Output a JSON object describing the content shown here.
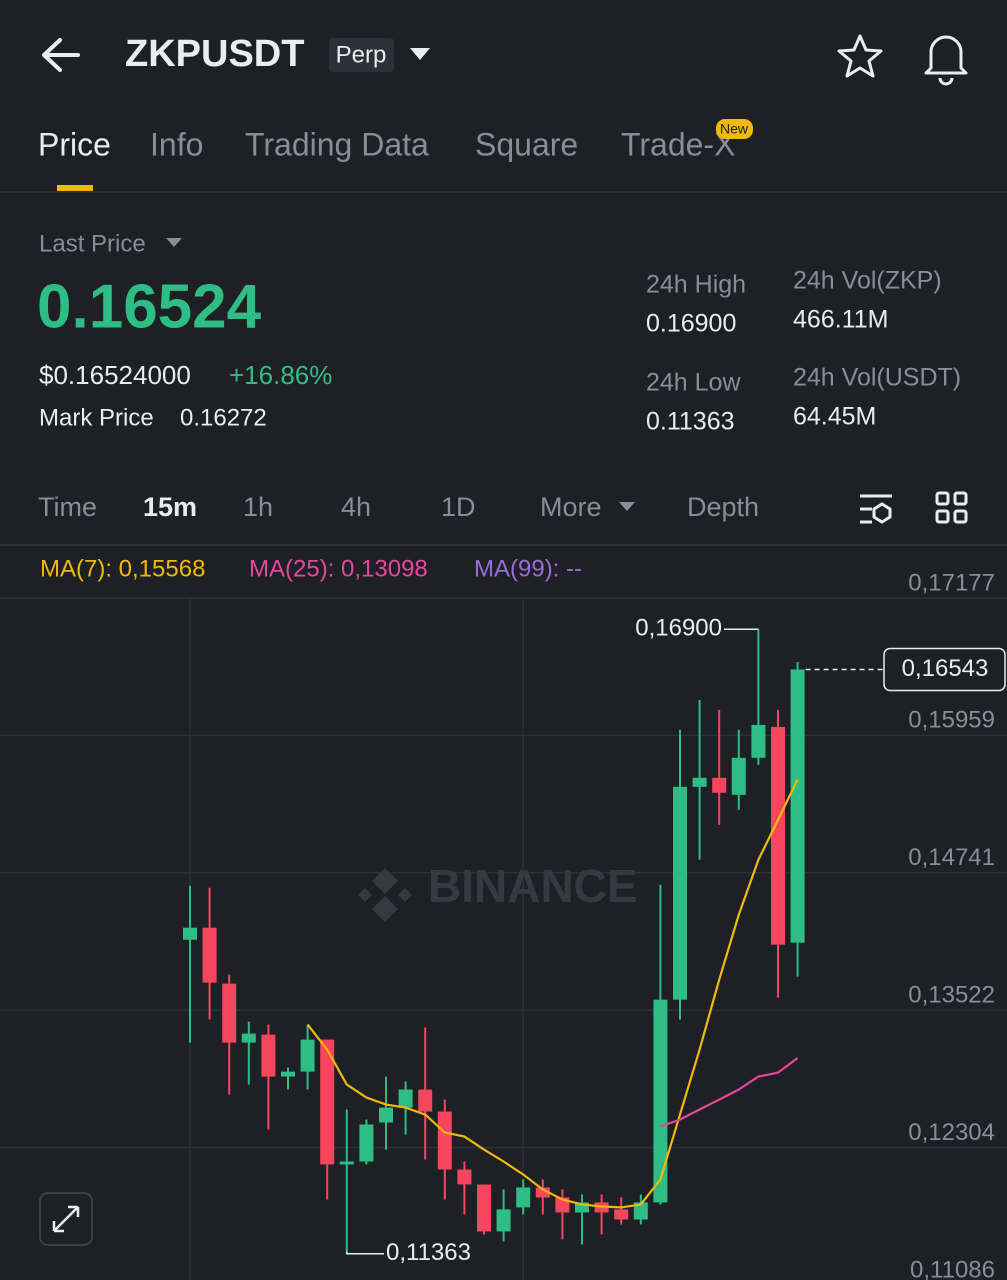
{
  "header": {
    "title": "ZKPUSDT",
    "badge": "Perp"
  },
  "tabs": {
    "items": [
      "Price",
      "Info",
      "Trading Data",
      "Square",
      "Trade-X"
    ],
    "new_badge": "New"
  },
  "ticker": {
    "last_price_label": "Last Price",
    "last_price": "0.16524",
    "usd_price": "$0.16524000",
    "change": "+16.86%",
    "mark_price_label": "Mark Price",
    "mark_price": "0.16272",
    "stats": [
      {
        "label": "24h High",
        "value": "0.16900"
      },
      {
        "label": "24h Vol(ZKP)",
        "value": "466.11M"
      },
      {
        "label": "24h Low",
        "value": "0.11363"
      },
      {
        "label": "24h Vol(USDT)",
        "value": "64.45M"
      }
    ]
  },
  "intervals": {
    "items": [
      "Time",
      "15m",
      "1h",
      "4h",
      "1D",
      "More",
      "Depth"
    ]
  },
  "chart_data": {
    "type": "candlestick",
    "watermark": "BINANCE",
    "up_color": "#2ebd85",
    "down_color": "#f6465d",
    "open": [
      0.14147,
      0.14254,
      0.13758,
      0.13235,
      0.13306,
      0.12934,
      0.12978,
      0.13262,
      0.12155,
      0.12181,
      0.12527,
      0.12659,
      0.12819,
      0.12624,
      0.1211,
      0.11977,
      0.11561,
      0.11774,
      0.11951,
      0.11862,
      0.11729,
      0.11818,
      0.11756,
      0.11667,
      0.11818,
      0.13616,
      0.15503,
      0.15583,
      0.15432,
      0.1576,
      0.16034,
      0.14121
    ],
    "high": [
      0.14626,
      0.14608,
      0.13838,
      0.13421,
      0.13395,
      0.13014,
      0.13395,
      0.13262,
      0.12642,
      0.12553,
      0.12934,
      0.1289,
      0.13368,
      0.1273,
      0.12181,
      0.11977,
      0.11933,
      0.12022,
      0.12022,
      0.11933,
      0.11889,
      0.11889,
      0.11862,
      0.11889,
      0.14635,
      0.16008,
      0.16273,
      0.16185,
      0.16008,
      0.169,
      0.16185,
      0.1661
    ],
    "low": [
      0.13235,
      0.13439,
      0.12774,
      0.12863,
      0.12464,
      0.12819,
      0.12819,
      0.11844,
      0.11363,
      0.12155,
      0.12287,
      0.1242,
      0.12199,
      0.11844,
      0.11712,
      0.11534,
      0.11472,
      0.11712,
      0.11712,
      0.1149,
      0.11446,
      0.11534,
      0.11623,
      0.11623,
      0.118,
      0.13439,
      0.14856,
      0.15166,
      0.15299,
      0.15698,
      0.13634,
      0.1382
    ],
    "close": [
      0.14254,
      0.13767,
      0.13235,
      0.13315,
      0.12934,
      0.12978,
      0.13262,
      0.12155,
      0.12181,
      0.12509,
      0.12659,
      0.12819,
      0.12624,
      0.1211,
      0.11977,
      0.11561,
      0.11756,
      0.11951,
      0.11862,
      0.11729,
      0.11818,
      0.11729,
      0.11667,
      0.11818,
      0.13616,
      0.15503,
      0.15583,
      0.1545,
      0.1576,
      0.16052,
      0.14103,
      0.16543
    ],
    "series": [
      {
        "name": "MA(7): 0,15568",
        "color": "#f0b90b",
        "values": [
          null,
          null,
          null,
          null,
          null,
          null,
          0.13395,
          0.13173,
          0.12863,
          0.12748,
          0.12686,
          0.12659,
          0.12597,
          0.12438,
          0.12402,
          0.12287,
          0.12181,
          0.12066,
          0.11933,
          0.11844,
          0.118,
          0.11782,
          0.11774,
          0.118,
          0.12022,
          0.12597,
          0.13173,
          0.13793,
          0.14369,
          0.14856,
          0.1521,
          0.15568
        ]
      },
      {
        "name": "MA(25): 0,13098",
        "color": "#e5479d",
        "values": [
          null,
          null,
          null,
          null,
          null,
          null,
          null,
          null,
          null,
          null,
          null,
          null,
          null,
          null,
          null,
          null,
          null,
          null,
          null,
          null,
          null,
          null,
          null,
          null,
          0.12491,
          0.12553,
          0.12642,
          0.1273,
          0.12819,
          0.12934,
          0.12969,
          0.13098
        ]
      },
      {
        "name": "MA(99): --",
        "color": "#9b6bd6"
      }
    ],
    "ylim": [
      0.11086,
      0.17177
    ],
    "yticks": [
      {
        "value": 0.17177,
        "label": "0,17177"
      },
      {
        "value": 0.15959,
        "label": "0,15959"
      },
      {
        "value": 0.14741,
        "label": "0,14741"
      },
      {
        "value": 0.13522,
        "label": "0,13522"
      },
      {
        "value": 0.12304,
        "label": "0,12304"
      },
      {
        "value": 0.11086,
        "label": "0,11086"
      }
    ],
    "grid": true,
    "annotations": {
      "high": {
        "value": 0.169,
        "label": "0,16900"
      },
      "low": {
        "value": 0.11363,
        "label": "0,11363"
      },
      "last": {
        "value": 0.16543,
        "label": "0,16543"
      }
    }
  }
}
